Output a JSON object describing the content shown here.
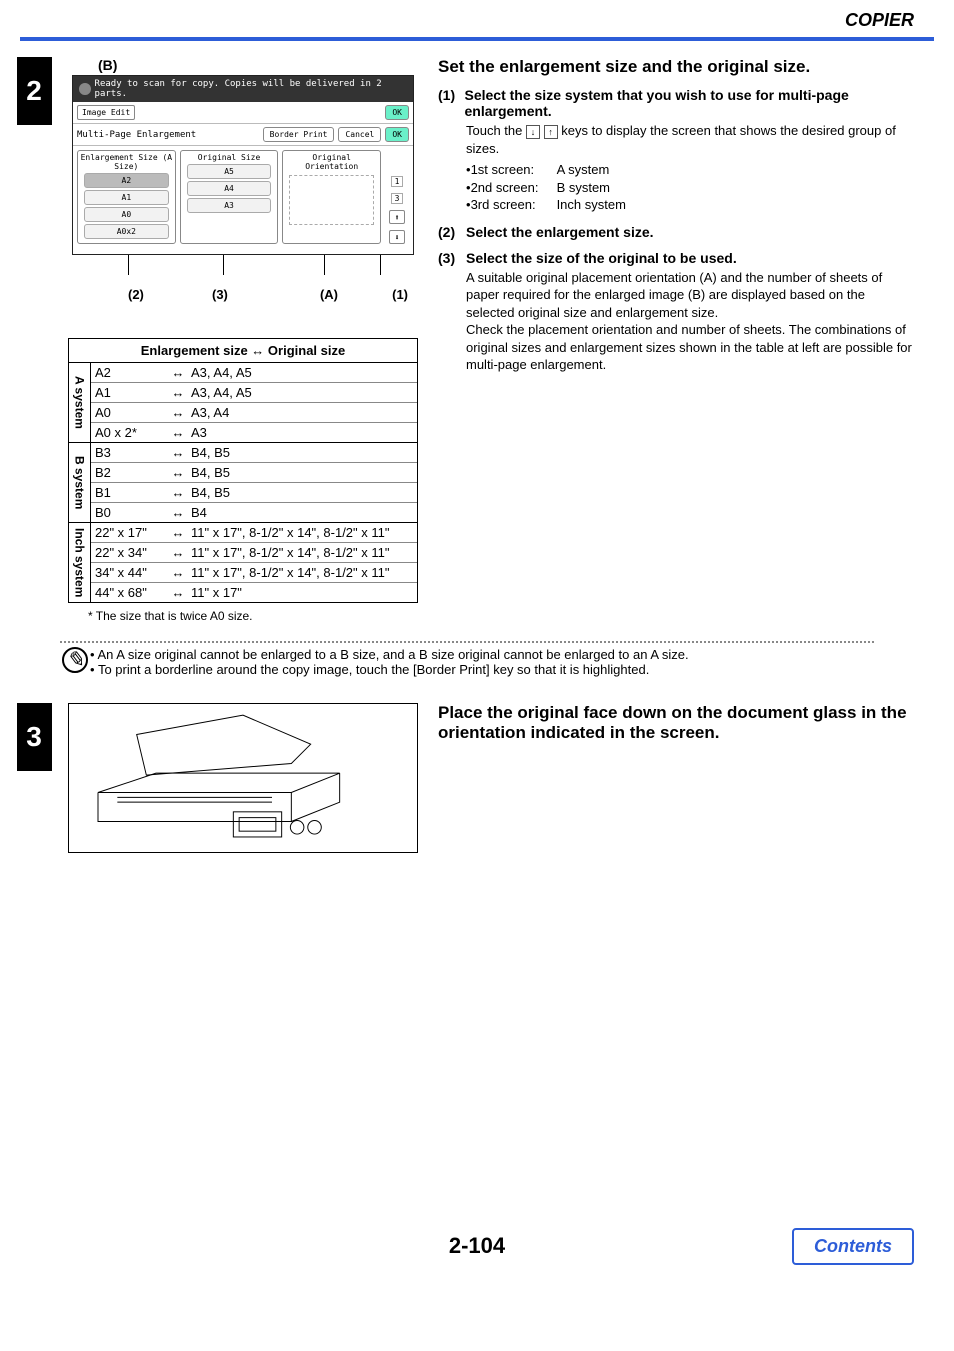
{
  "header": {
    "section": "COPIER"
  },
  "step2": {
    "number": "2",
    "lcd": {
      "label_b": "(B)",
      "status": "Ready to scan for copy. Copies will be delivered in 2 parts.",
      "row1": {
        "tab": "Image Edit",
        "ok": "OK"
      },
      "row2": {
        "title": "Multi-Page Enlargement",
        "border": "Border Print",
        "cancel": "Cancel",
        "ok": "OK"
      },
      "panel": {
        "col1_hdr": "Enlargement Size (A Size)",
        "col1_btns": [
          "A2",
          "A1",
          "A0",
          "A0x2"
        ],
        "col2_hdr": "Original Size",
        "col2_btns": [
          "A5",
          "A4",
          "A3"
        ],
        "col3_hdr": "Original Orientation",
        "page_ind": [
          "1",
          "3"
        ],
        "arrow_up": "⬆",
        "arrow_down": "⬇"
      },
      "callouts": [
        "(2)",
        "(3)",
        "(A)",
        "(1)"
      ]
    },
    "table": {
      "header": "Enlargement size  ↔  Original size",
      "groups": [
        {
          "label": "A system",
          "rows": [
            {
              "e": "A2",
              "o": "A3, A4, A5"
            },
            {
              "e": "A1",
              "o": "A3, A4, A5"
            },
            {
              "e": "A0",
              "o": "A3, A4"
            },
            {
              "e": "A0 x 2*",
              "o": "A3"
            }
          ]
        },
        {
          "label": "B system",
          "rows": [
            {
              "e": "B3",
              "o": "B4, B5"
            },
            {
              "e": "B2",
              "o": "B4, B5"
            },
            {
              "e": "B1",
              "o": "B4, B5"
            },
            {
              "e": "B0",
              "o": "B4"
            }
          ]
        },
        {
          "label": "Inch system",
          "rows": [
            {
              "e": "22\" x 17\"",
              "o": "11\" x 17\", 8-1/2\" x 14\", 8-1/2\" x 11\""
            },
            {
              "e": "22\" x 34\"",
              "o": "11\" x 17\", 8-1/2\" x 14\", 8-1/2\" x 11\""
            },
            {
              "e": "34\" x 44\"",
              "o": "11\" x 17\", 8-1/2\" x 14\", 8-1/2\" x 11\""
            },
            {
              "e": "44\" x 68\"",
              "o": "11\" x 17\""
            }
          ]
        }
      ],
      "footnote": "* The size that is twice A0 size."
    },
    "instr": {
      "heading": "Set the enlargement size and the original size.",
      "s1": {
        "num": "(1)",
        "title": "Select the size system that you wish to use for multi-page enlargement.",
        "body_a": "Touch the ",
        "body_b": " keys to display the screen that shows the desired group of sizes.",
        "list": [
          {
            "l": "1st screen:",
            "v": "A system"
          },
          {
            "l": "2nd screen:",
            "v": "B system"
          },
          {
            "l": "3rd screen:",
            "v": "Inch system"
          }
        ]
      },
      "s2": {
        "num": "(2)",
        "title": "Select the enlargement size."
      },
      "s3": {
        "num": "(3)",
        "title": "Select the size of the original to be used.",
        "body": "A suitable original placement orientation (A) and the number of sheets of paper required for the enlarged image (B) are displayed based on the selected original size and enlargement size.\nCheck the placement orientation and number of sheets. The combinations of original sizes and enlargement sizes shown in the table at left are possible for multi-page enlargement."
      }
    },
    "notes": [
      "An A size original cannot be enlarged to a B size, and a B size original cannot be enlarged to an A size.",
      "To print a borderline around the copy image, touch the [Border Print] key so that it is highlighted."
    ]
  },
  "step3": {
    "number": "3",
    "heading": "Place the original face down on the document glass in the orientation indicated in the screen."
  },
  "footer": {
    "page": "2-104",
    "contents": "Contents"
  }
}
